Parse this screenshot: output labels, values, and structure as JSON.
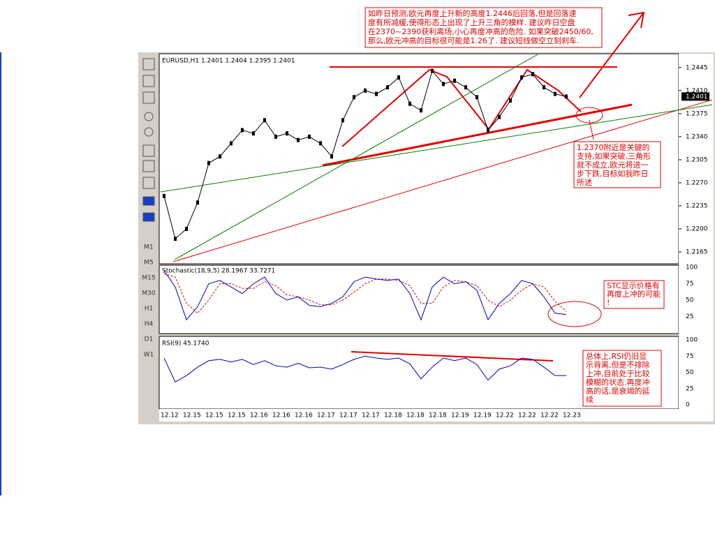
{
  "window": {
    "price_header": "EURUSD,H1  1.2401 1.2404 1.2395 1.2401",
    "current_price": "1.2401",
    "timeframes": [
      "M1",
      "M5",
      "M15",
      "M30",
      "H1",
      "H4",
      "D1",
      "W1"
    ],
    "price_ticks": [
      1.2445,
      1.241,
      1.2375,
      1.234,
      1.2305,
      1.227,
      1.2235,
      1.22,
      1.2165
    ],
    "price_tick_labels": [
      "1.2445",
      "1.2410",
      "1.2375",
      "1.2340",
      "1.2305",
      "1.2270",
      "1.2235",
      "1.2200",
      "1.2165"
    ],
    "price_range": [
      1.2147,
      1.2466
    ],
    "price_values": [
      1.225,
      1.2185,
      1.22,
      1.224,
      1.23,
      1.231,
      1.233,
      1.235,
      1.2345,
      1.2365,
      1.234,
      1.2345,
      1.2335,
      1.234,
      1.233,
      1.231,
      1.2365,
      1.24,
      1.241,
      1.2405,
      1.2415,
      1.243,
      1.239,
      1.238,
      1.244,
      1.242,
      1.2425,
      1.2415,
      1.24,
      1.235,
      1.237,
      1.2395,
      1.243,
      1.2435,
      1.2415,
      1.2405,
      1.2401
    ],
    "stochastic": {
      "header": "Stochastic(18,9,5)  28.1967  33.7271",
      "ticks": [
        100,
        75,
        50,
        25
      ],
      "main": [
        95,
        70,
        20,
        40,
        75,
        80,
        70,
        60,
        75,
        85,
        60,
        50,
        55,
        42,
        40,
        45,
        55,
        78,
        85,
        82,
        80,
        82,
        60,
        20,
        70,
        85,
        75,
        78,
        65,
        20,
        45,
        60,
        80,
        75,
        55,
        30,
        28
      ],
      "signal": [
        90,
        85,
        45,
        30,
        50,
        75,
        75,
        68,
        68,
        78,
        72,
        58,
        55,
        50,
        43,
        43,
        50,
        62,
        75,
        82,
        82,
        80,
        72,
        45,
        45,
        70,
        80,
        78,
        72,
        50,
        40,
        50,
        65,
        75,
        70,
        48,
        33
      ]
    },
    "rsi": {
      "header": "RSI(9)  45.1740",
      "ticks": [
        100,
        75,
        50,
        25,
        0
      ],
      "values": [
        72,
        35,
        45,
        58,
        68,
        70,
        66,
        70,
        62,
        68,
        60,
        58,
        64,
        57,
        58,
        55,
        62,
        70,
        75,
        72,
        70,
        72,
        63,
        40,
        58,
        72,
        68,
        72,
        62,
        38,
        55,
        60,
        72,
        70,
        58,
        45,
        45
      ]
    },
    "dates": [
      "12.12",
      "12.15",
      "12.15",
      "12.15",
      "12.16",
      "12.16",
      "12.16",
      "12.17",
      "12.17",
      "12.17",
      "12.18",
      "12.18",
      "12.18",
      "12.19",
      "12.19",
      "12.22",
      "12.22",
      "12.22",
      "12.23"
    ]
  },
  "annotations": {
    "top": [
      "如昨日预测,欧元再度上升新的高度1.2446后回落,但是回落速",
      "度有所减缓,使得形态上出现了上升三角的模样. 建议昨日空盘",
      "在2370~2390获利离场,小心再度冲高的危险. 如果突破2450/60,",
      "那么,欧元冲高的目标很可能是1.26了. 建议短线做空立刻刹车."
    ],
    "support": [
      "1.2370附近是关键的",
      "支持,如果突破,三角形",
      "就不成立,欧元将进一",
      "步下跌,目标如我昨日",
      "所述"
    ],
    "stc": [
      "STC显示价格有",
      "再度上冲的可能",
      "!"
    ],
    "rsi": [
      "总体上,RSI仍旧显",
      "示背离,但是不排除",
      "上冲,目前处于比较",
      "模糊的状态.再度冲",
      "高的话,是衰竭的延",
      "续"
    ]
  }
}
